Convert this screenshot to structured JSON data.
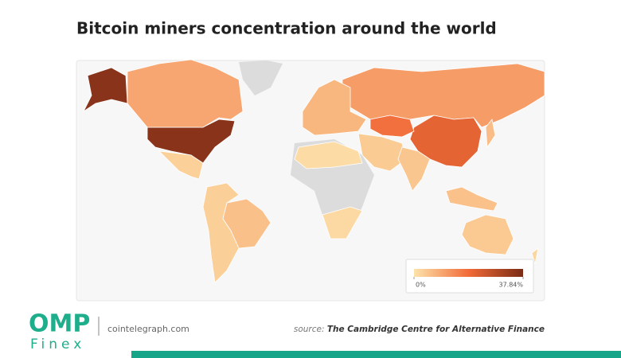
{
  "chart_data": {
    "type": "choropleth",
    "title": "Bitcoin miners concentration around the world",
    "values": [
      35.4,
      9.6,
      21.1,
      18.1,
      11.2,
      3.0,
      7.0,
      3.8,
      4.5,
      5.3,
      5.5,
      3.2,
      1.5,
      1.2,
      4.0,
      6.0,
      2.0
    ],
    "colorscale": [
      "#fde3ab",
      "#f26b38",
      "#7a2c15"
    ],
    "scale": [
      {
        "value": 0,
        "label": "0%"
      },
      {
        "value": 37.84,
        "label": "37.84%"
      }
    ],
    "source_label": "source:",
    "source_name": "The Cambridge Centre for Alternative Finance",
    "site": "cointelegraph.com"
  },
  "logo": {
    "top": "OMP",
    "bottom": "Finex"
  }
}
